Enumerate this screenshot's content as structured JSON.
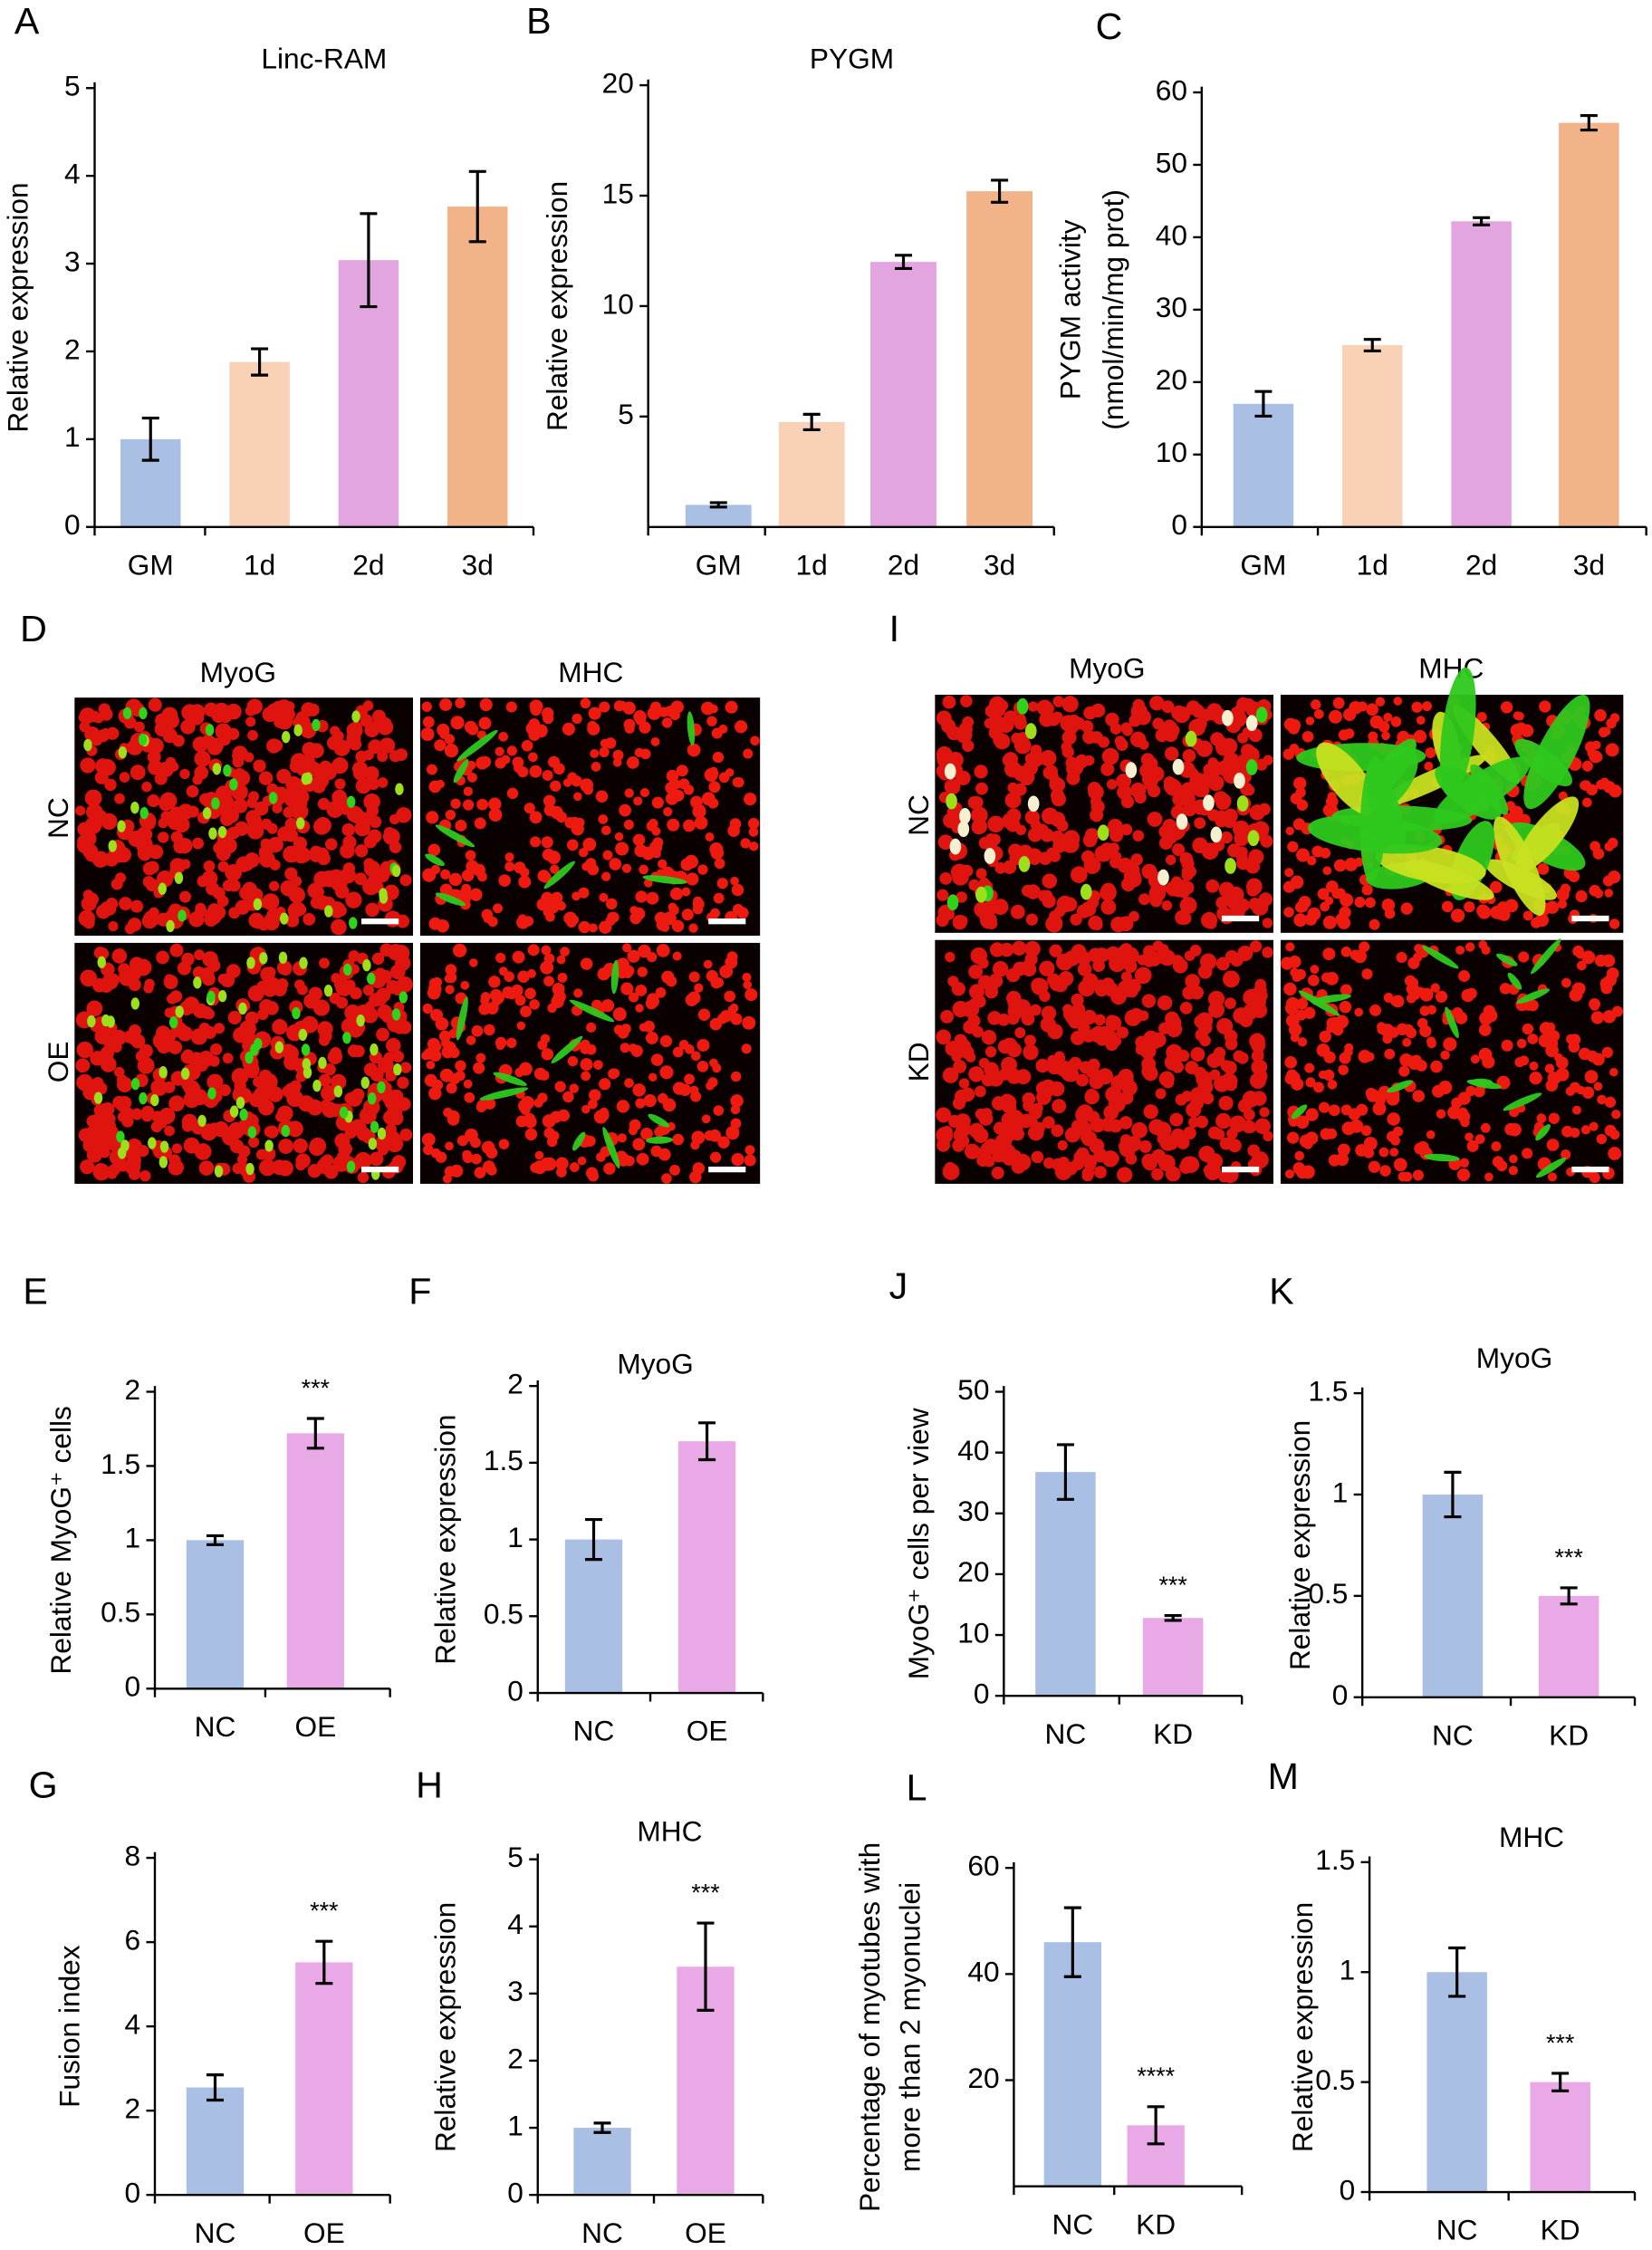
{
  "chart_data": [
    {
      "panel": "A",
      "type": "bar",
      "title": "Linc-RAM",
      "y_label": "Relative expression",
      "categories": [
        "GM",
        "1d",
        "2d",
        "3d"
      ],
      "values": [
        1.0,
        1.88,
        3.04,
        3.65
      ],
      "errors": [
        0.24,
        0.15,
        0.53,
        0.4
      ],
      "colors": [
        "#a9bfe4",
        "#f9d1b6",
        "#e3a5e0",
        "#f2b388"
      ],
      "ylim": [
        0,
        5
      ],
      "yticks": [
        0,
        1,
        2,
        3,
        4,
        5
      ]
    },
    {
      "panel": "B",
      "type": "bar",
      "title": "PYGM",
      "y_label": "Relative expression",
      "categories": [
        "GM",
        "1d",
        "2d",
        "3d"
      ],
      "values": [
        1.0,
        4.75,
        12.0,
        15.2
      ],
      "errors": [
        0.1,
        0.35,
        0.3,
        0.5
      ],
      "colors": [
        "#a9bfe4",
        "#f9d1b6",
        "#e3a5e0",
        "#f2b388"
      ],
      "ylim": [
        0,
        20
      ],
      "yticks": [
        5,
        10,
        15,
        20
      ]
    },
    {
      "panel": "C",
      "type": "bar",
      "y_label": [
        "PYGM activity",
        "(nmol/min/mg prot)"
      ],
      "categories": [
        "GM",
        "1d",
        "2d",
        "3d"
      ],
      "values": [
        17.0,
        25.1,
        42.2,
        55.8
      ],
      "errors": [
        1.7,
        0.8,
        0.5,
        1.0
      ],
      "colors": [
        "#a9bfe4",
        "#f9d1b6",
        "#e3a5e0",
        "#f2b388"
      ],
      "ylim": [
        0,
        60
      ],
      "yticks": [
        0,
        10,
        20,
        30,
        40,
        50,
        60
      ]
    },
    {
      "panel": "E",
      "type": "bar",
      "y_label": "Relative MyoG⁺ cells",
      "categories": [
        "NC",
        "OE"
      ],
      "values": [
        1.0,
        1.72
      ],
      "errors": [
        0.03,
        0.1
      ],
      "significance": [
        null,
        "***"
      ],
      "colors": [
        "#a9bfe4",
        "#e9a9e6"
      ],
      "ylim": [
        0,
        2
      ],
      "yticks": [
        0,
        0.5,
        1,
        1.5,
        2
      ]
    },
    {
      "panel": "F",
      "type": "bar",
      "title": "MyoG",
      "y_label": "Relative expression",
      "categories": [
        "NC",
        "OE"
      ],
      "values": [
        1.0,
        1.64
      ],
      "errors": [
        0.13,
        0.12
      ],
      "colors": [
        "#a9bfe4",
        "#e9a9e6"
      ],
      "ylim": [
        0,
        2
      ],
      "yticks": [
        0,
        0.5,
        1,
        1.5,
        2
      ]
    },
    {
      "panel": "G",
      "type": "bar",
      "y_label": "Fusion index",
      "categories": [
        "NC",
        "OE"
      ],
      "values": [
        2.55,
        5.52
      ],
      "errors": [
        0.3,
        0.5
      ],
      "significance": [
        null,
        "***"
      ],
      "colors": [
        "#a9bfe4",
        "#e9a9e6"
      ],
      "ylim": [
        0,
        8
      ],
      "yticks": [
        0,
        2,
        4,
        6,
        8
      ]
    },
    {
      "panel": "H",
      "type": "bar",
      "title": "MHC",
      "y_label": "Relative expression",
      "categories": [
        "NC",
        "OE"
      ],
      "values": [
        1.0,
        3.4
      ],
      "errors": [
        0.07,
        0.65
      ],
      "significance": [
        null,
        "***"
      ],
      "colors": [
        "#a9bfe4",
        "#e9a9e6"
      ],
      "ylim": [
        0,
        5
      ],
      "yticks": [
        0,
        1,
        2,
        3,
        4,
        5
      ]
    },
    {
      "panel": "J",
      "type": "bar",
      "y_label": "MyoG⁺ cells per view",
      "categories": [
        "NC",
        "KD"
      ],
      "values": [
        36.8,
        12.8
      ],
      "errors": [
        4.5,
        0.4
      ],
      "significance": [
        null,
        "***"
      ],
      "colors": [
        "#a9bfe4",
        "#e9a9e6"
      ],
      "ylim": [
        0,
        50
      ],
      "yticks": [
        0,
        10,
        20,
        30,
        40,
        50
      ]
    },
    {
      "panel": "K",
      "type": "bar",
      "title": "MyoG",
      "y_label": "Relative expression",
      "categories": [
        "NC",
        "KD"
      ],
      "values": [
        1.0,
        0.5
      ],
      "errors": [
        0.11,
        0.04
      ],
      "significance": [
        null,
        "***"
      ],
      "colors": [
        "#a9bfe4",
        "#e9a9e6"
      ],
      "ylim": [
        0,
        1.5
      ],
      "yticks": [
        0,
        0.5,
        1,
        1.5
      ]
    },
    {
      "panel": "L",
      "type": "bar",
      "y_label": [
        "Percentage of myotubes with",
        "more than 2 myonuclei"
      ],
      "categories": [
        "NC",
        "KD"
      ],
      "values": [
        46,
        11.5
      ],
      "errors": [
        6.5,
        3.5
      ],
      "significance": [
        null,
        "****"
      ],
      "colors": [
        "#a9bfe4",
        "#e9a9e6"
      ],
      "ylim": [
        0,
        60
      ],
      "yticks": [
        20,
        40,
        60
      ]
    },
    {
      "panel": "M",
      "type": "bar",
      "title": "MHC",
      "y_label": "Relative expression",
      "categories": [
        "NC",
        "KD"
      ],
      "values": [
        1.0,
        0.5
      ],
      "errors": [
        0.11,
        0.04
      ],
      "significance": [
        null,
        "***"
      ],
      "colors": [
        "#a9bfe4",
        "#e9a9e6"
      ],
      "ylim": [
        0,
        1.5
      ],
      "yticks": [
        0,
        0.5,
        1,
        1.5
      ]
    }
  ],
  "image_panels": [
    {
      "panel": "D",
      "columns": [
        "MyoG",
        "MHC"
      ],
      "rows": [
        "NC",
        "OE"
      ]
    },
    {
      "panel": "I",
      "columns": [
        "MyoG",
        "MHC"
      ],
      "rows": [
        "NC",
        "KD"
      ]
    }
  ]
}
